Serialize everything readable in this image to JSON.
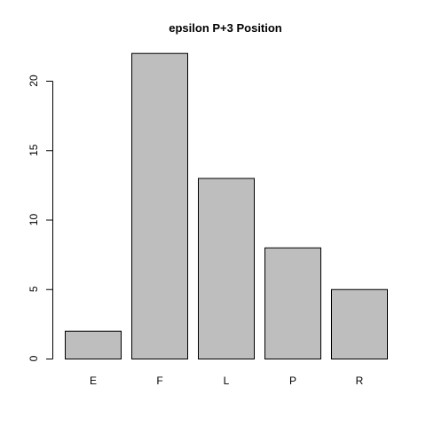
{
  "chart_data": {
    "type": "bar",
    "title": "epsilon P+3 Position",
    "xlabel": "",
    "ylabel": "",
    "categories": [
      "E",
      "F",
      "L",
      "P",
      "R"
    ],
    "values": [
      2,
      22,
      13,
      8,
      5
    ],
    "ylim": [
      0,
      22
    ],
    "yticks": [
      0,
      5,
      10,
      15,
      20
    ],
    "grid": false,
    "legend": "none",
    "bar_color": "#bebebe",
    "bar_border_color": "#000000"
  }
}
